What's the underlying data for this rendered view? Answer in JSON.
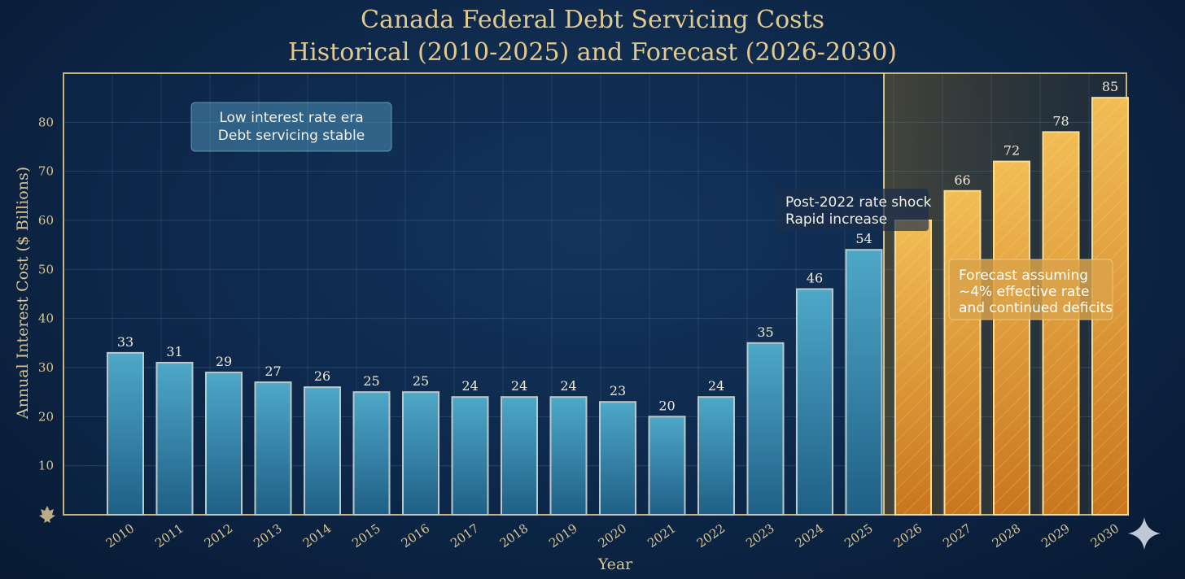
{
  "colors": {
    "historical": "#3a96b8",
    "forecast": "#e2a33c",
    "accent": "#e3c98c",
    "frame": "#c9b47f"
  },
  "chart_data": {
    "type": "bar",
    "title": [
      "Canada Federal Debt Servicing Costs",
      "Historical (2010-2025) and Forecast (2026-2030)"
    ],
    "xlabel": "Year",
    "ylabel": "Annual Interest Cost ($ Billions)",
    "ylim": [
      0,
      90
    ],
    "yticks": [
      10,
      20,
      30,
      40,
      50,
      60,
      70,
      80
    ],
    "grid": true,
    "categories": [
      "2010",
      "2011",
      "2012",
      "2013",
      "2014",
      "2015",
      "2016",
      "2017",
      "2018",
      "2019",
      "2020",
      "2021",
      "2022",
      "2023",
      "2024",
      "2025",
      "2026",
      "2027",
      "2028",
      "2029",
      "2030"
    ],
    "tick_labels": [
      "2010",
      "2011",
      "2012",
      "2013",
      "2014",
      "2015",
      "2016",
      "2017",
      "2018",
      "2019",
      "2020",
      "2021",
      "2022",
      "2023",
      "2024",
      "2025",
      "2026",
      "2027",
      "2028",
      "2029",
      "2030"
    ],
    "values": [
      33,
      31,
      29,
      27,
      26,
      25,
      25,
      24,
      24,
      24,
      23,
      20,
      24,
      35,
      46,
      54,
      60,
      66,
      72,
      78,
      85
    ],
    "data_labels": [
      "33",
      "31",
      "29",
      "27",
      "26",
      "25",
      "25",
      "24",
      "24",
      "24",
      "23",
      "20",
      "24",
      "35",
      "46",
      "54",
      "",
      "66",
      "72",
      "78",
      "85"
    ],
    "forecast_start_index": 16,
    "annotations": [
      {
        "id": "low-rate",
        "lines": [
          "Low interest rate era",
          "Debt servicing stable"
        ]
      },
      {
        "id": "rate-shock",
        "lines": [
          "Post-2022 rate shock",
          "Rapid increase"
        ]
      },
      {
        "id": "forecast",
        "lines": [
          "Forecast assuming",
          "~4% effective rate",
          "and continued deficits"
        ]
      }
    ]
  }
}
